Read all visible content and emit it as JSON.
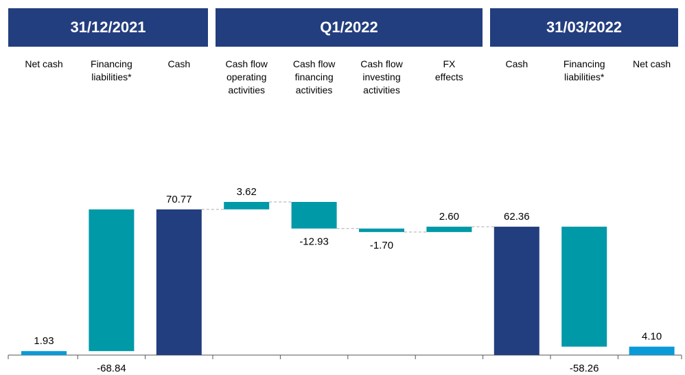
{
  "chart_data": {
    "type": "waterfall",
    "headers": [
      "31/12/2021",
      "Q1/2022",
      "31/03/2022"
    ],
    "categories": [
      "Net cash",
      "Financing\nliabilities*",
      "Cash",
      "Cash flow\noperating\nactivities",
      "Cash flow\nfinancing\nactivities",
      "Cash flow\ninvesting\nactivities",
      "FX\neffects",
      "Cash",
      "Financing\nliabilities*",
      "Net cash"
    ],
    "kinds": [
      "total",
      "bridge",
      "total",
      "delta",
      "delta",
      "delta",
      "delta",
      "total",
      "bridge",
      "total"
    ],
    "values": [
      1.93,
      -68.84,
      70.77,
      3.62,
      -12.93,
      -1.7,
      2.6,
      62.36,
      -58.26,
      4.1
    ],
    "value_labels": [
      "1.93",
      "-68.84",
      "70.77",
      "3.62",
      "-12.93",
      "-1.70",
      "2.60",
      "62.36",
      "-58.26",
      "4.10"
    ],
    "colors": [
      "#0a9ad7",
      "#0099a8",
      "#233e7f",
      "#0099a8",
      "#0099a8",
      "#0099a8",
      "#0099a8",
      "#233e7f",
      "#0099a8",
      "#0a9ad7"
    ]
  }
}
